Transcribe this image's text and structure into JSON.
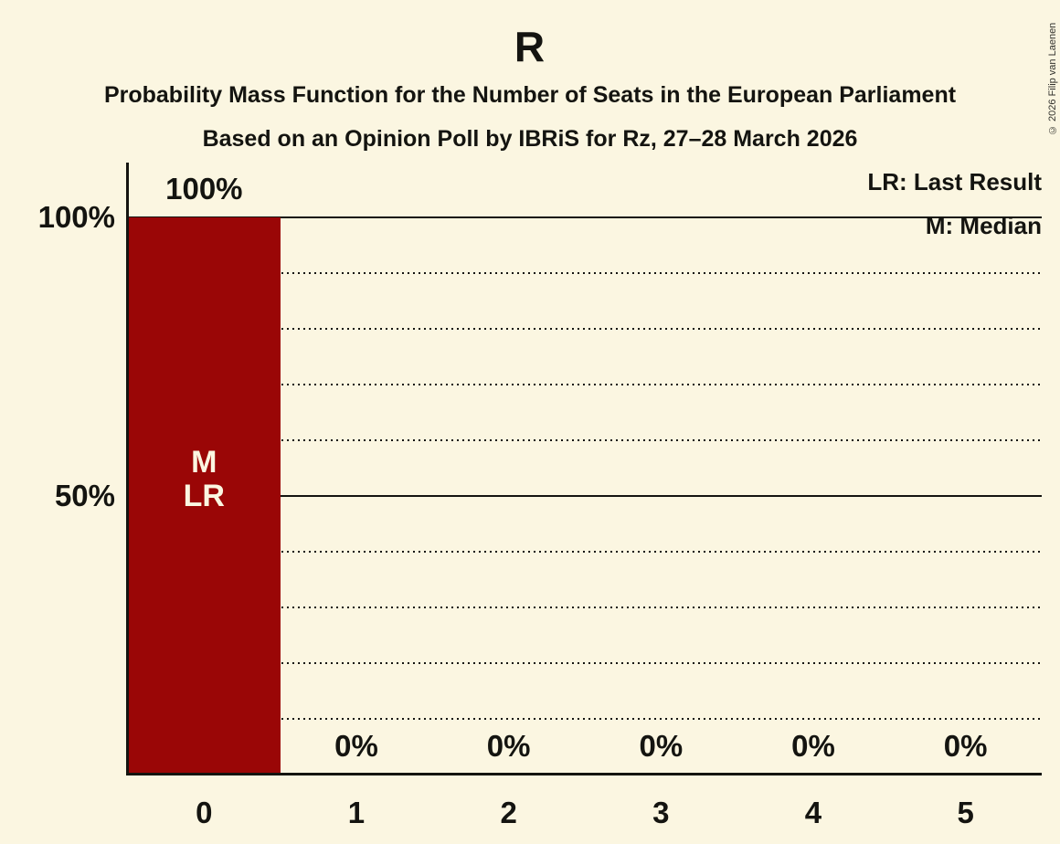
{
  "title": "R",
  "subtitle1": "Probability Mass Function for the Number of Seats in the European Parliament",
  "subtitle2": "Based on an Opinion Poll by IBRiS for Rz, 27–28 March 2026",
  "copyright": "© 2026 Filip van Laenen",
  "legend": {
    "lr": "LR: Last Result",
    "m": "M: Median"
  },
  "colors": {
    "background": "#fbf6e1",
    "bar": "#9a0606",
    "text": "#141410",
    "bar_label": "#fbf6e1"
  },
  "chart_data": {
    "type": "bar",
    "categories": [
      "0",
      "1",
      "2",
      "3",
      "4",
      "5"
    ],
    "values": [
      100,
      0,
      0,
      0,
      0,
      0
    ],
    "value_labels": [
      "100%",
      "0%",
      "0%",
      "0%",
      "0%",
      "0%"
    ],
    "bar_annotations": [
      [
        "M",
        "LR"
      ],
      [],
      [],
      [],
      [],
      []
    ],
    "title": "R",
    "xlabel": "",
    "ylabel": "",
    "ylim": [
      0,
      100
    ],
    "yticks": [
      {
        "label": "100%",
        "value": 100
      },
      {
        "label": "50%",
        "value": 50
      }
    ],
    "gridlines": {
      "dotted_step_pct": 10,
      "solid_at_pct": [
        50,
        100
      ]
    },
    "legend_position": "top-right",
    "grid": true
  }
}
